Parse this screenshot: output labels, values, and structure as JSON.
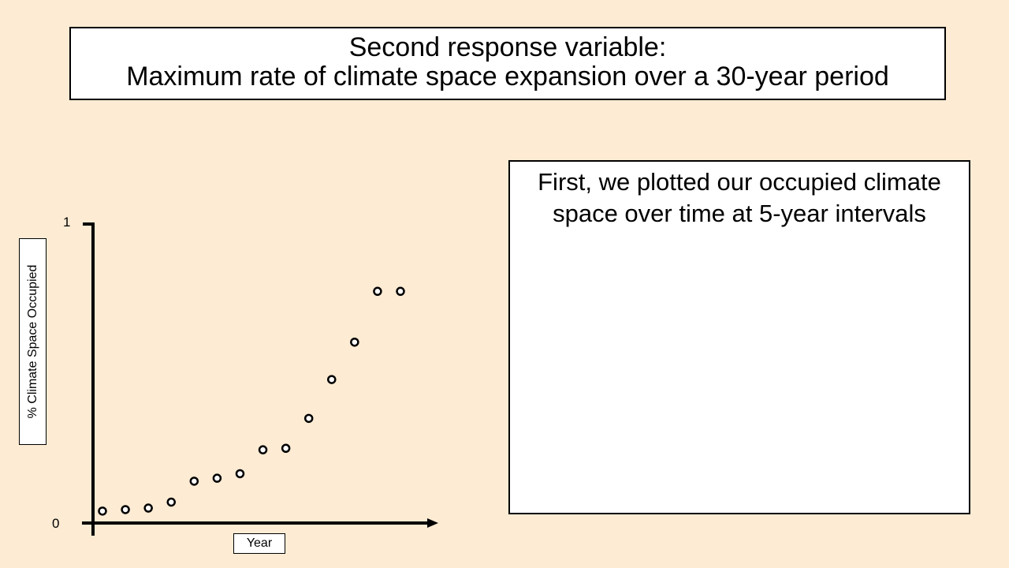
{
  "title": {
    "line1": "Second response variable:",
    "line2": "Maximum rate of climate space expansion over a 30-year period"
  },
  "info_box": {
    "text": "First, we plotted our occupied climate space over time at 5-year intervals"
  },
  "chart_data": {
    "type": "scatter",
    "title": "",
    "xlabel": "Year",
    "ylabel": "% Climate Space Occupied",
    "ylim": [
      0,
      1
    ],
    "y_ticks": [
      "0",
      "1"
    ],
    "x_ticks": [],
    "grid": false,
    "legend": "none",
    "marker": "open-circle",
    "x": [
      1,
      2,
      3,
      4,
      5,
      6,
      7,
      8,
      9,
      10,
      11,
      12,
      13,
      14
    ],
    "values": [
      0.04,
      0.045,
      0.05,
      0.07,
      0.14,
      0.15,
      0.165,
      0.245,
      0.25,
      0.35,
      0.48,
      0.605,
      0.775,
      0.775
    ],
    "colors": {
      "marker_stroke": "#000000",
      "axis": "#000000"
    }
  }
}
